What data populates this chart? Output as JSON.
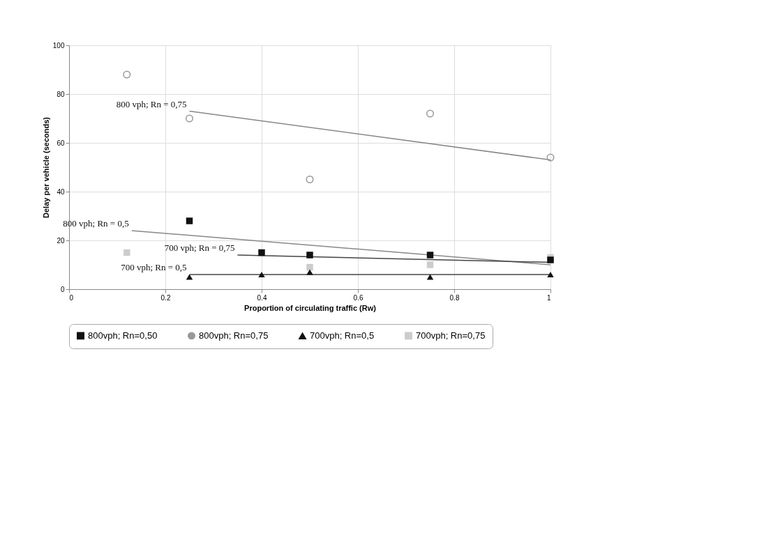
{
  "chart_data": {
    "type": "scatter",
    "xlabel": "Proportion of circulating traffic (Rw)",
    "ylabel": "Delay per vehicle (seconds)",
    "xlim": [
      0,
      1
    ],
    "xticks": [
      0,
      0.2,
      0.4,
      0.6,
      0.8,
      1
    ],
    "ylim": [
      0,
      100
    ],
    "yticks": [
      0,
      20,
      40,
      60,
      80,
      100
    ],
    "grid": true,
    "legend": "bottom",
    "series": [
      {
        "name": "800vph; Rn=0,50",
        "color": "#111111",
        "marker": "square",
        "x": [
          0.25,
          0.4,
          0.5,
          0.75,
          1
        ],
        "values": [
          28,
          15,
          14,
          14,
          12
        ]
      },
      {
        "name": "800vph; Rn=0,75",
        "color": "#999999",
        "marker": "circle",
        "x": [
          0.12,
          0.25,
          0.5,
          0.75,
          1
        ],
        "values": [
          88,
          70,
          45,
          72,
          54
        ]
      },
      {
        "name": "700vph; Rn=0,5",
        "color": "#111111",
        "marker": "triangle",
        "x": [
          0.25,
          0.4,
          0.5,
          0.75,
          1
        ],
        "values": [
          5,
          6,
          7,
          5,
          6
        ]
      },
      {
        "name": "700vph; Rn=0,75",
        "color": "#cccccc",
        "marker": "square",
        "x": [
          0.12,
          0.5,
          0.75,
          1
        ],
        "values": [
          15,
          9,
          10,
          13
        ]
      },
      {
        "type": "line",
        "color": "#888888",
        "x": [
          0.25,
          1
        ],
        "values": [
          73,
          53
        ]
      },
      {
        "type": "line",
        "color": "#888888",
        "x": [
          0.13,
          1
        ],
        "values": [
          24,
          10
        ]
      },
      {
        "type": "line",
        "color": "#444444",
        "x": [
          0.35,
          1
        ],
        "values": [
          14,
          11
        ]
      },
      {
        "type": "line",
        "color": "#444444",
        "x": [
          0.25,
          1
        ],
        "values": [
          6,
          6
        ]
      }
    ],
    "annotations": [
      {
        "text": "800 vph; Rn = 0,75",
        "x": 0.25,
        "y": 73
      },
      {
        "text": "800 vph; Rn = 0,5",
        "x": 0.13,
        "y": 24
      },
      {
        "text": "700 vph; Rn = 0,75",
        "x": 0.35,
        "y": 14
      },
      {
        "text": "700 vph; Rn = 0,5",
        "x": 0.25,
        "y": 6
      }
    ]
  }
}
